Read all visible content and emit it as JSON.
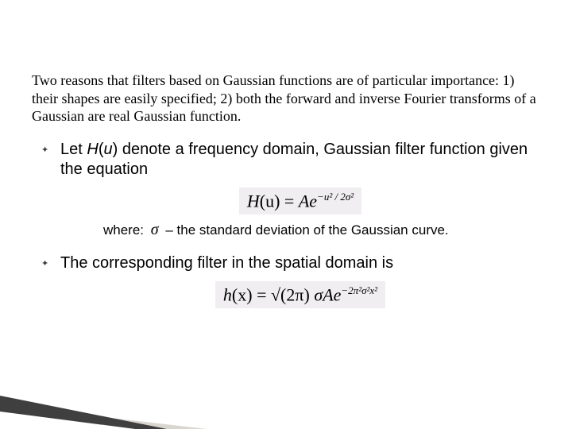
{
  "colors": {
    "background": "#ffffff",
    "text": "#000000",
    "eq_bg": "#f0eef0",
    "accent_dark": "#403f3f",
    "accent_light": "#d9d6d0"
  },
  "typography": {
    "intro_font": "Times New Roman",
    "intro_size_pt": 14,
    "body_font": "Verdana",
    "body_size_pt": 15,
    "equation_font": "Times New Roman",
    "equation_size_pt": 17,
    "where_size_pt": 13
  },
  "intro": "Two reasons that filters based on Gaussian functions are of particular importance: 1) their shapes are easily specified; 2) both the forward and inverse Fourier transforms of a Gaussian are real Gaussian function.",
  "bullet1": {
    "pre": "Let ",
    "func": "H",
    "arg_open": "(",
    "arg": "u",
    "arg_close": ")",
    "post": " denote a frequency domain, Gaussian filter function given the equation"
  },
  "eq1": {
    "lhs_H": "H",
    "lhs_paren_u": "(u)",
    "eq": " = ",
    "A": "A",
    "e": "e",
    "exp": "−u² / 2σ²"
  },
  "where": {
    "label": "where:",
    "sigma": "σ",
    "desc": "– the standard deviation of the Gaussian curve."
  },
  "bullet2": "The corresponding filter in the spatial domain is",
  "eq2": {
    "lhs_h": "h",
    "lhs_paren_x": "(x)",
    "eq": " = ",
    "sqrt": "√(2π)",
    "sigma": " σ",
    "A": "A",
    "e": "e",
    "exp": "−2π²σ²x²"
  }
}
